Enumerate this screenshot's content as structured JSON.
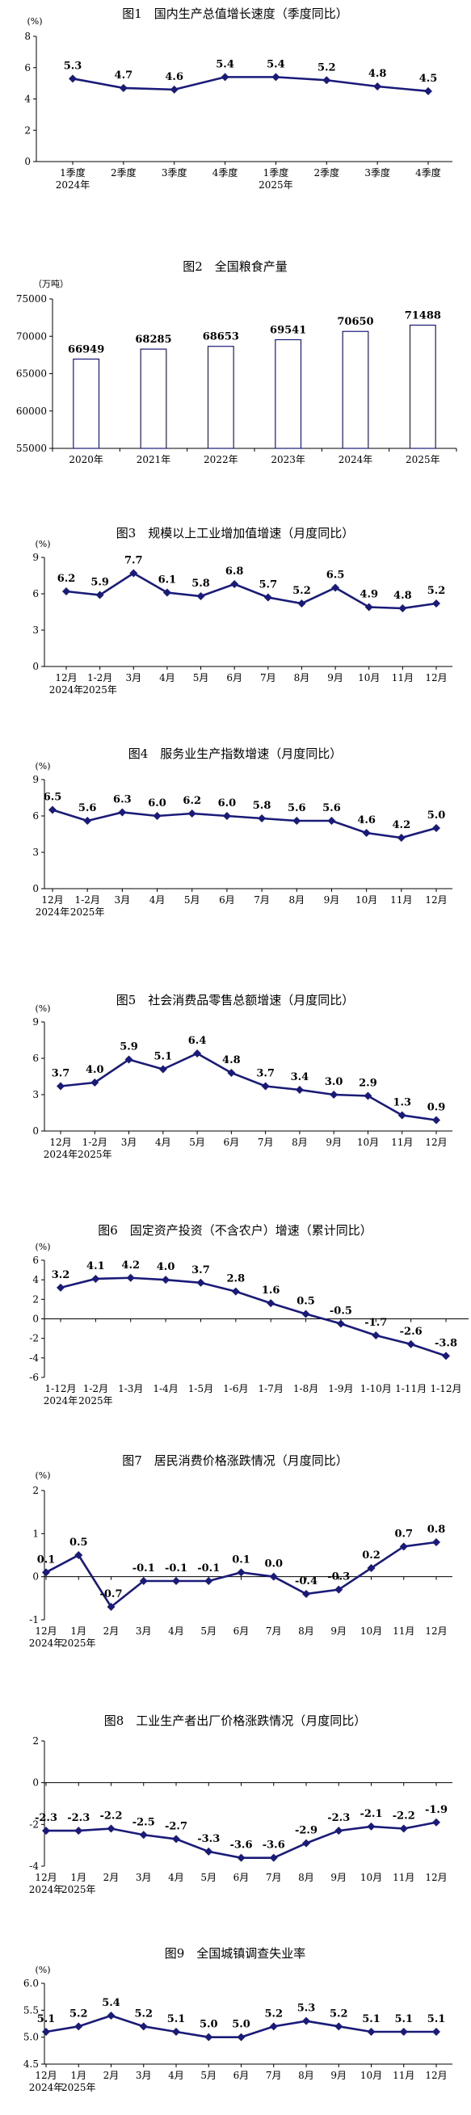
{
  "colors": {
    "line": "#1a1a78",
    "bar_stroke": "#1a1a78",
    "axis": "#000000"
  },
  "chart_data": [
    {
      "type": "line",
      "title": "图1　国内生产总值增长速度（季度同比）",
      "unit": "(%)",
      "categories": [
        "1季度",
        "2季度",
        "3季度",
        "4季度",
        "1季度",
        "2季度",
        "3季度",
        "4季度"
      ],
      "years": [
        "2024年",
        "2025年"
      ],
      "values": [
        5.3,
        4.7,
        4.6,
        5.4,
        5.4,
        5.2,
        4.8,
        4.5
      ],
      "labels": [
        "5.3",
        "4.7",
        "4.6",
        "5.4",
        "5.4",
        "5.2",
        "4.8",
        "4.5"
      ],
      "yticks": [
        "0",
        "2",
        "4",
        "6",
        "8"
      ],
      "ylim": [
        0,
        8
      ],
      "grid": false
    },
    {
      "type": "bar",
      "title": "图2　全国粮食产量",
      "unit": "（万吨）",
      "categories": [
        "2020年",
        "2021年",
        "2022年",
        "2023年",
        "2024年",
        "2025年"
      ],
      "values": [
        66949,
        68285,
        68653,
        69541,
        70650,
        71488
      ],
      "labels": [
        "66949",
        "68285",
        "68653",
        "69541",
        "70650",
        "71488"
      ],
      "yticks": [
        "55000",
        "60000",
        "65000",
        "70000",
        "75000"
      ],
      "ylim": [
        55000,
        75000
      ],
      "grid": false
    },
    {
      "type": "line",
      "title": "图3　规模以上工业增加值增速（月度同比）",
      "unit": "(%)",
      "categories": [
        "12月",
        "1-2月",
        "3月",
        "4月",
        "5月",
        "6月",
        "7月",
        "8月",
        "9月",
        "10月",
        "11月",
        "12月"
      ],
      "years": [
        "2024年",
        "2025年"
      ],
      "values": [
        6.2,
        5.9,
        7.7,
        6.1,
        5.8,
        6.8,
        5.7,
        5.2,
        6.5,
        4.9,
        4.8,
        5.2
      ],
      "labels": [
        "6.2",
        "5.9",
        "7.7",
        "6.1",
        "5.8",
        "6.8",
        "5.7",
        "5.2",
        "6.5",
        "4.9",
        "4.8",
        "5.2"
      ],
      "yticks": [
        "0",
        "3",
        "6",
        "9"
      ],
      "ylim": [
        0,
        9
      ],
      "grid": false
    },
    {
      "type": "line",
      "title": "图4　服务业生产指数增速（月度同比）",
      "unit": "(%)",
      "categories": [
        "12月",
        "1-2月",
        "3月",
        "4月",
        "5月",
        "6月",
        "7月",
        "8月",
        "9月",
        "10月",
        "11月",
        "12月"
      ],
      "years": [
        "2024年",
        "2025年"
      ],
      "values": [
        6.5,
        5.6,
        6.3,
        6.0,
        6.2,
        6.0,
        5.8,
        5.6,
        5.6,
        4.6,
        4.2,
        5.0
      ],
      "labels": [
        "6.5",
        "5.6",
        "6.3",
        "6.0",
        "6.2",
        "6.0",
        "5.8",
        "5.6",
        "5.6",
        "4.6",
        "4.2",
        "5.0"
      ],
      "yticks": [
        "0",
        "3",
        "6",
        "9"
      ],
      "ylim": [
        0,
        9
      ],
      "grid": false
    },
    {
      "type": "line",
      "title": "图5　社会消费品零售总额增速（月度同比）",
      "unit": "(%)",
      "categories": [
        "12月",
        "1-2月",
        "3月",
        "4月",
        "5月",
        "6月",
        "7月",
        "8月",
        "9月",
        "10月",
        "11月",
        "12月"
      ],
      "years": [
        "2024年",
        "2025年"
      ],
      "values": [
        3.7,
        4.0,
        5.9,
        5.1,
        6.4,
        4.8,
        3.7,
        3.4,
        3.0,
        2.9,
        1.3,
        0.9
      ],
      "labels": [
        "3.7",
        "4.0",
        "5.9",
        "5.1",
        "6.4",
        "4.8",
        "3.7",
        "3.4",
        "3.0",
        "2.9",
        "1.3",
        "0.9"
      ],
      "yticks": [
        "0",
        "3",
        "6",
        "9"
      ],
      "ylim": [
        0,
        9
      ],
      "grid": false
    },
    {
      "type": "line",
      "title": "图6　固定资产投资（不含农户）增速（累计同比）",
      "unit": "(%)",
      "categories": [
        "1-12月",
        "1-2月",
        "1-3月",
        "1-4月",
        "1-5月",
        "1-6月",
        "1-7月",
        "1-8月",
        "1-9月",
        "1-10月",
        "1-11月",
        "1-12月"
      ],
      "years": [
        "2024年",
        "2025年"
      ],
      "values": [
        3.2,
        4.1,
        4.2,
        4.0,
        3.7,
        2.8,
        1.6,
        0.5,
        -0.5,
        -1.7,
        -2.6,
        -3.8
      ],
      "labels": [
        "3.2",
        "4.1",
        "4.2",
        "4.0",
        "3.7",
        "2.8",
        "1.6",
        "0.5",
        "-0.5",
        "-1.7",
        "-2.6",
        "-3.8"
      ],
      "yticks": [
        "-6",
        "-4",
        "-2",
        "0",
        "2",
        "4",
        "6"
      ],
      "ylim": [
        -6,
        6
      ],
      "grid": false
    },
    {
      "type": "line",
      "title": "图7　居民消费价格涨跌情况（月度同比）",
      "unit": "(%)",
      "categories": [
        "12月",
        "1月",
        "2月",
        "3月",
        "4月",
        "5月",
        "6月",
        "7月",
        "8月",
        "9月",
        "10月",
        "11月",
        "12月"
      ],
      "years": [
        "2024年",
        "2025年"
      ],
      "values": [
        0.1,
        0.5,
        -0.7,
        -0.1,
        -0.1,
        -0.1,
        0.1,
        0.0,
        -0.4,
        -0.3,
        0.2,
        0.7,
        0.8
      ],
      "labels": [
        "0.1",
        "0.5",
        "-0.7",
        "-0.1",
        "-0.1",
        "-0.1",
        "0.1",
        "0.0",
        "-0.4",
        "-0.3",
        "0.2",
        "0.7",
        "0.8"
      ],
      "yticks": [
        "-1",
        "0",
        "1",
        "2"
      ],
      "ylim": [
        -1,
        2
      ],
      "grid": false
    },
    {
      "type": "line",
      "title": "图8　工业生产者出厂价格涨跌情况（月度同比）",
      "unit": "",
      "categories": [
        "12月",
        "1月",
        "2月",
        "3月",
        "4月",
        "5月",
        "6月",
        "7月",
        "8月",
        "9月",
        "10月",
        "11月",
        "12月"
      ],
      "years": [
        "2024年",
        "2025年"
      ],
      "values": [
        -2.3,
        -2.3,
        -2.2,
        -2.5,
        -2.7,
        -3.3,
        -3.6,
        -3.6,
        -2.9,
        -2.3,
        -2.1,
        -2.2,
        -1.9
      ],
      "labels": [
        "-2.3",
        "-2.3",
        "-2.2",
        "-2.5",
        "-2.7",
        "-3.3",
        "-3.6",
        "-3.6",
        "-2.9",
        "-2.3",
        "-2.1",
        "-2.2",
        "-1.9"
      ],
      "yticks": [
        "-4",
        "-2",
        "0",
        "2"
      ],
      "ylim": [
        -4,
        2
      ],
      "grid": false
    },
    {
      "type": "line",
      "title": "图9　全国城镇调查失业率",
      "unit": "(%)",
      "categories": [
        "12月",
        "1月",
        "2月",
        "3月",
        "4月",
        "5月",
        "6月",
        "7月",
        "8月",
        "9月",
        "10月",
        "11月",
        "12月"
      ],
      "years": [
        "2024年",
        "2025年"
      ],
      "values": [
        5.1,
        5.2,
        5.4,
        5.2,
        5.1,
        5.0,
        5.0,
        5.2,
        5.3,
        5.2,
        5.1,
        5.1,
        5.1
      ],
      "labels": [
        "5.1",
        "5.2",
        "5.4",
        "5.2",
        "5.1",
        "5.0",
        "5.0",
        "5.2",
        "5.3",
        "5.2",
        "5.1",
        "5.1",
        "5.1"
      ],
      "yticks": [
        "4.5",
        "5.0",
        "5.5",
        "6.0"
      ],
      "ylim": [
        4.5,
        6.0
      ],
      "grid": false
    }
  ]
}
